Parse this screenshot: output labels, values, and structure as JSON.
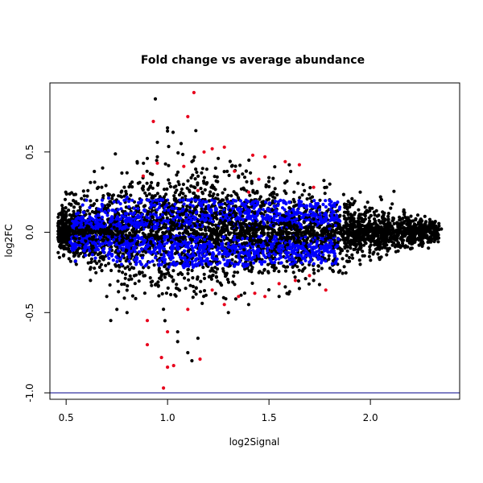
{
  "chart_data": {
    "type": "scatter",
    "title": "Fold change vs average abundance",
    "xlabel": "log2Signal",
    "ylabel": "log2FC",
    "xlim": [
      0.42,
      2.44
    ],
    "ylim": [
      -1.04,
      0.93
    ],
    "x_ticks": [
      {
        "value": 0.5,
        "label": "0.5"
      },
      {
        "value": 1.0,
        "label": "1.0"
      },
      {
        "value": 1.5,
        "label": "1.5"
      },
      {
        "value": 2.0,
        "label": "2.0"
      }
    ],
    "y_ticks": [
      {
        "value": -1.0,
        "label": "-1.0"
      },
      {
        "value": -0.5,
        "label": "-0.5"
      },
      {
        "value": 0.0,
        "label": "0.0"
      },
      {
        "value": 0.5,
        "label": "0.5"
      }
    ],
    "reference_line": {
      "y": -1.0,
      "color": "#00008b"
    },
    "grid": false,
    "legend": "none",
    "series": [
      {
        "color": "#000000",
        "points": [
          [
            0.94,
            0.83
          ],
          [
            1.0,
            0.65
          ],
          [
            1.0,
            0.63
          ],
          [
            0.95,
            0.56
          ],
          [
            0.9,
            0.46
          ],
          [
            0.95,
            0.47
          ],
          [
            0.85,
            0.44
          ],
          [
            1.12,
            0.44
          ],
          [
            1.25,
            0.46
          ],
          [
            1.6,
            0.42
          ],
          [
            0.68,
            0.4
          ],
          [
            0.8,
            0.37
          ],
          [
            0.62,
            0.31
          ],
          [
            1.35,
            0.35
          ],
          [
            1.5,
            0.34
          ],
          [
            1.8,
            0.3
          ],
          [
            2.05,
            0.22
          ],
          [
            1.95,
            0.25
          ],
          [
            2.1,
            0.15
          ],
          [
            2.2,
            0.1
          ],
          [
            2.3,
            0.05
          ],
          [
            2.35,
            0.02
          ],
          [
            2.3,
            -0.04
          ],
          [
            2.2,
            -0.1
          ],
          [
            2.08,
            -0.14
          ],
          [
            1.95,
            -0.2
          ],
          [
            1.85,
            -0.24
          ],
          [
            1.72,
            -0.3
          ],
          [
            0.7,
            -0.4
          ],
          [
            0.72,
            -0.55
          ],
          [
            0.75,
            -0.48
          ],
          [
            0.8,
            -0.5
          ],
          [
            1.05,
            -0.62
          ],
          [
            1.1,
            -0.75
          ],
          [
            1.12,
            -0.8
          ],
          [
            1.15,
            -0.66
          ],
          [
            0.62,
            -0.3
          ],
          [
            0.55,
            -0.2
          ],
          [
            0.5,
            -0.1
          ],
          [
            0.48,
            0.0
          ],
          [
            0.5,
            0.1
          ],
          [
            0.55,
            0.18
          ],
          [
            1.3,
            -0.5
          ],
          [
            1.4,
            -0.45
          ],
          [
            1.55,
            -0.4
          ],
          [
            1.65,
            -0.35
          ]
        ]
      },
      {
        "color": "#e8001c",
        "points": [
          [
            1.13,
            0.87
          ],
          [
            1.1,
            0.72
          ],
          [
            0.93,
            0.69
          ],
          [
            1.28,
            0.53
          ],
          [
            1.22,
            0.52
          ],
          [
            1.18,
            0.5
          ],
          [
            1.42,
            0.48
          ],
          [
            1.48,
            0.47
          ],
          [
            1.58,
            0.44
          ],
          [
            1.65,
            0.42
          ],
          [
            0.95,
            0.43
          ],
          [
            1.08,
            0.41
          ],
          [
            1.33,
            0.38
          ],
          [
            1.45,
            0.33
          ],
          [
            1.72,
            0.28
          ],
          [
            0.88,
            0.35
          ],
          [
            1.15,
            0.26
          ],
          [
            1.4,
            0.25
          ],
          [
            0.9,
            -0.55
          ],
          [
            0.9,
            -0.7
          ],
          [
            0.97,
            -0.78
          ],
          [
            1.0,
            -0.62
          ],
          [
            1.03,
            -0.83
          ],
          [
            1.0,
            -0.84
          ],
          [
            0.98,
            -0.97
          ],
          [
            1.16,
            -0.79
          ],
          [
            1.1,
            -0.48
          ],
          [
            1.28,
            -0.45
          ],
          [
            1.35,
            -0.4
          ],
          [
            1.43,
            -0.38
          ],
          [
            1.48,
            -0.4
          ],
          [
            1.55,
            -0.32
          ],
          [
            1.63,
            -0.3
          ],
          [
            1.78,
            -0.36
          ],
          [
            1.7,
            -0.27
          ],
          [
            1.22,
            -0.36
          ]
        ]
      }
    ]
  }
}
